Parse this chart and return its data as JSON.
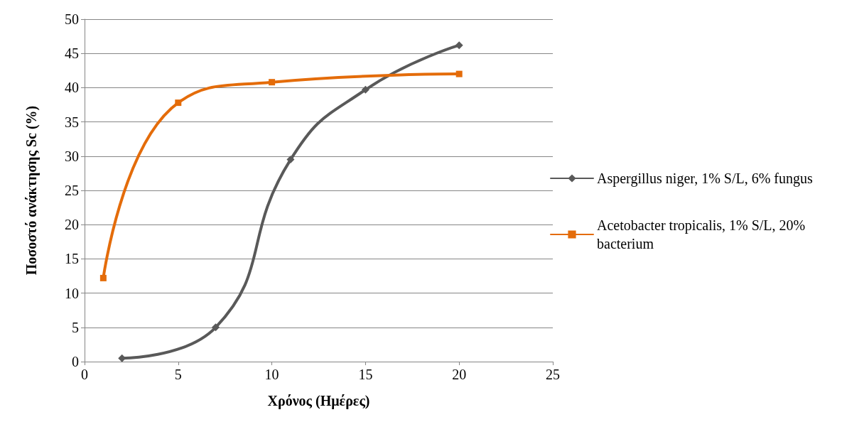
{
  "chart_data": {
    "type": "line",
    "xlabel": "Χρόνος (Ημέρες)",
    "ylabel": "Ποσοστό ανάκτησης Sc (%)",
    "xlim": [
      0,
      25
    ],
    "xticks": [
      0,
      5,
      10,
      15,
      20,
      25
    ],
    "ylim": [
      0,
      50
    ],
    "yticks": [
      0,
      5,
      10,
      15,
      20,
      25,
      30,
      35,
      40,
      45,
      50
    ],
    "grid": "y",
    "legend": "right",
    "line_style": "solid",
    "series": [
      {
        "name": "Aspergillus niger, 1% S/L, 6% fungus",
        "color": "#595959",
        "marker": "diamond",
        "x": [
          2,
          7,
          11,
          15,
          20
        ],
        "values": [
          0.5,
          5,
          29.5,
          39.7,
          46.2
        ]
      },
      {
        "name": "Acetobacter tropicalis, 1% S/L, 20% bacterium",
        "color": "#e46c0a",
        "marker": "square",
        "x": [
          1,
          5,
          10,
          20
        ],
        "values": [
          12.2,
          37.8,
          40.8,
          42
        ]
      }
    ]
  }
}
